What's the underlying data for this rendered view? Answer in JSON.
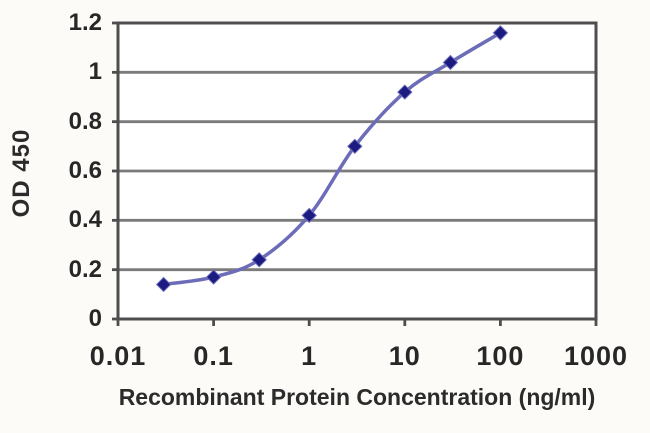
{
  "chart_data": {
    "type": "line",
    "title": "",
    "xlabel": "Recombinant Protein Concentration (ng/ml)",
    "ylabel": "OD 450",
    "x_scale": "log",
    "xlim": [
      0.01,
      1000
    ],
    "ylim": [
      0,
      1.2
    ],
    "x_ticks": [
      0.01,
      0.1,
      1,
      10,
      100,
      1000
    ],
    "x_tick_labels": [
      "0.01",
      "0.1",
      "1",
      "10",
      "100",
      "1000"
    ],
    "y_ticks": [
      0,
      0.2,
      0.4,
      0.6,
      0.8,
      1,
      1.2
    ],
    "y_tick_labels": [
      "0",
      "0.2",
      "0.4",
      "0.6",
      "0.8",
      "1",
      "1.2"
    ],
    "grid": true,
    "legend": false,
    "series": [
      {
        "marker": "diamond",
        "x": [
          0.03,
          0.1,
          0.3,
          1,
          3,
          10,
          30,
          100
        ],
        "y": [
          0.14,
          0.17,
          0.24,
          0.42,
          0.7,
          0.92,
          1.04,
          1.16
        ]
      }
    ],
    "colors": {
      "line": "#6c6cb8",
      "marker": "#1b1b82",
      "gridline": "#7b7b7b",
      "axis_border": "#4e4e4e",
      "text": "#272727",
      "plot_bg": "#ffffff",
      "page_bg": "#fcfbf8"
    }
  }
}
